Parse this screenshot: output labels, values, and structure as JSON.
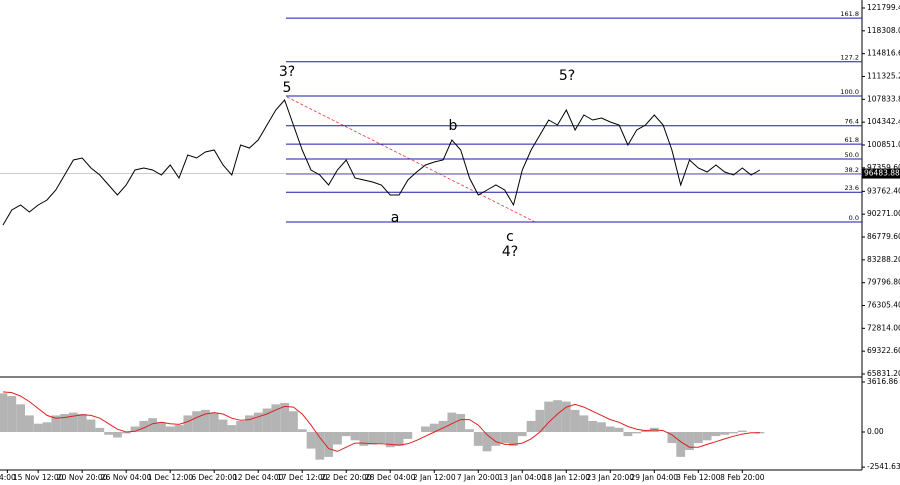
{
  "chart_data": [
    {
      "type": "line",
      "color": "#000000",
      "values": [
        88620,
        90913,
        91678,
        90607,
        91678,
        92442,
        93971,
        96265,
        98558,
        98864,
        97335,
        96265,
        94736,
        93207,
        94736,
        97029,
        97335,
        97029,
        96265,
        97794,
        95806,
        99323,
        98864,
        99781,
        100087,
        97794,
        96265,
        100852,
        100393,
        101616,
        103910,
        106203,
        107732,
        103910,
        100087,
        97029,
        96265,
        94736,
        97029,
        98558,
        95806,
        95500,
        95194,
        94736,
        93207,
        93207,
        95500,
        96723,
        97794,
        98252,
        98558,
        101616,
        100087,
        95806,
        93207,
        93971,
        94736,
        93971,
        91678,
        97029,
        100087,
        102381,
        104674,
        103910,
        106203,
        103145,
        105439,
        104674,
        104980,
        104368,
        103910,
        100852,
        103145,
        103910,
        105439,
        103910,
        100087,
        94736,
        98558,
        97335,
        96723,
        97794,
        96723,
        96265,
        97335,
        96265,
        97029
      ],
      "xlim": [
        -0.34,
        97.6
      ],
      "xticks": [
        {
          "value": 0.5,
          "label": "4:00"
        },
        {
          "value": 4,
          "label": "15 Nov 12:00"
        },
        {
          "value": 9,
          "label": "20 Nov 20:00"
        },
        {
          "value": 14,
          "label": "26 Nov 04:00"
        },
        {
          "value": 19,
          "label": "1 Dec 12:00"
        },
        {
          "value": 24,
          "label": "6 Dec 20:00"
        },
        {
          "value": 29,
          "label": "12 Dec 04:00"
        },
        {
          "value": 34,
          "label": "17 Dec 12:00"
        },
        {
          "value": 39,
          "label": "22 Dec 20:00"
        },
        {
          "value": 44,
          "label": "28 Dec 04:00"
        },
        {
          "value": 49,
          "label": "2 Jan 12:00"
        },
        {
          "value": 54,
          "label": "7 Jan 20:00"
        },
        {
          "value": 59,
          "label": "13 Jan 04:00"
        },
        {
          "value": 64,
          "label": "18 Jan 12:00"
        },
        {
          "value": 69,
          "label": "23 Jan 20:00"
        },
        {
          "value": 74,
          "label": "29 Jan 04:00"
        },
        {
          "value": 79,
          "label": "3 Feb 12:00"
        },
        {
          "value": 84,
          "label": "8 Feb 20:00"
        }
      ],
      "ylim": [
        65831.2,
        123022
      ],
      "yticks": [
        {
          "value": 121799.4,
          "label": "121799.40"
        },
        {
          "value": 118308.0,
          "label": "118308.00"
        },
        {
          "value": 114816.6,
          "label": "114816.60"
        },
        {
          "value": 111325.2,
          "label": "111325.20"
        },
        {
          "value": 107833.8,
          "label": "107833.80"
        },
        {
          "value": 104342.4,
          "label": "104342.40"
        },
        {
          "value": 100851.0,
          "label": "100851.00"
        },
        {
          "value": 97359.6,
          "label": "97359.60"
        },
        {
          "value": 93762.4,
          "label": "93762.40"
        },
        {
          "value": 90271.0,
          "label": "90271.00"
        },
        {
          "value": 86779.6,
          "label": "86779.60"
        },
        {
          "value": 83288.2,
          "label": "83288.20"
        },
        {
          "value": 79796.8,
          "label": "79796.80"
        },
        {
          "value": 76305.4,
          "label": "76305.40"
        },
        {
          "value": 72814.0,
          "label": "72814.00"
        },
        {
          "value": 69322.6,
          "label": "69322.60"
        },
        {
          "value": 65831.2,
          "label": "65831.20"
        }
      ],
      "current_price": 96483.88,
      "fib_color": "#1a1aa6",
      "fib_levels": [
        {
          "label": "161.8",
          "price": 120250
        },
        {
          "label": "127.2",
          "price": 113584
        },
        {
          "label": "100.0",
          "price": 108344
        },
        {
          "label": "76.4",
          "price": 103797
        },
        {
          "label": "61.8",
          "price": 100984
        },
        {
          "label": "50.0",
          "price": 98711
        },
        {
          "label": "38.2",
          "price": 96438
        },
        {
          "label": "23.6",
          "price": 93625
        },
        {
          "label": "0.0",
          "price": 89078
        }
      ],
      "annotations": [
        {
          "text": "3?",
          "color": "#1a1ad6"
        },
        {
          "text": "5",
          "color": "#d01818"
        },
        {
          "text": "b",
          "color": "#d01818"
        },
        {
          "text": "a",
          "color": "#d01818"
        },
        {
          "text": "c",
          "color": "#d01818"
        },
        {
          "text": "4?",
          "color": "#1a1ad6"
        },
        {
          "text": "5?",
          "color": "#1a1ad6"
        }
      ]
    },
    {
      "type": "macd",
      "histogram_color": "#b4b4b4",
      "signal_color": "#e02020",
      "histogram": [
        2800,
        2600,
        2000,
        1200,
        600,
        700,
        1200,
        1300,
        1400,
        1300,
        900,
        300,
        -200,
        -400,
        -100,
        400,
        800,
        1000,
        700,
        400,
        500,
        1200,
        1500,
        1600,
        1400,
        900,
        500,
        800,
        1200,
        1400,
        1700,
        2000,
        2100,
        1500,
        200,
        -1200,
        -2000,
        -1800,
        -900,
        -300,
        -600,
        -1000,
        -900,
        -800,
        -1100,
        -1000,
        -500,
        0,
        400,
        600,
        800,
        1400,
        1300,
        200,
        -1000,
        -1400,
        -1000,
        -800,
        -1000,
        -300,
        800,
        1600,
        2200,
        2300,
        2200,
        1600,
        1200,
        800,
        700,
        400,
        300,
        -300,
        -100,
        100,
        300,
        0,
        -800,
        -1800,
        -1300,
        -800,
        -600,
        -300,
        -200,
        -100,
        100,
        0,
        -100
      ],
      "signal": [
        2900,
        2850,
        2600,
        2200,
        1700,
        1200,
        1000,
        1050,
        1150,
        1250,
        1200,
        1000,
        600,
        200,
        0,
        50,
        300,
        600,
        700,
        600,
        550,
        750,
        1050,
        1300,
        1400,
        1300,
        1000,
        850,
        900,
        1100,
        1300,
        1600,
        1850,
        1800,
        1300,
        500,
        -400,
        -1200,
        -1400,
        -1100,
        -800,
        -800,
        -850,
        -850,
        -900,
        -950,
        -850,
        -600,
        -300,
        0,
        300,
        600,
        900,
        900,
        500,
        -200,
        -700,
        -900,
        -900,
        -800,
        -500,
        0,
        700,
        1300,
        1800,
        2000,
        1800,
        1500,
        1200,
        900,
        700,
        400,
        200,
        100,
        150,
        100,
        -200,
        -700,
        -1100,
        -1100,
        -900,
        -700,
        -500,
        -300,
        -150,
        -50,
        -50
      ],
      "ylim": [
        -2748,
        3906
      ],
      "yticks": [
        3616.86,
        {
          "value": 0,
          "label": "0.00"
        },
        -2541.63
      ]
    }
  ]
}
